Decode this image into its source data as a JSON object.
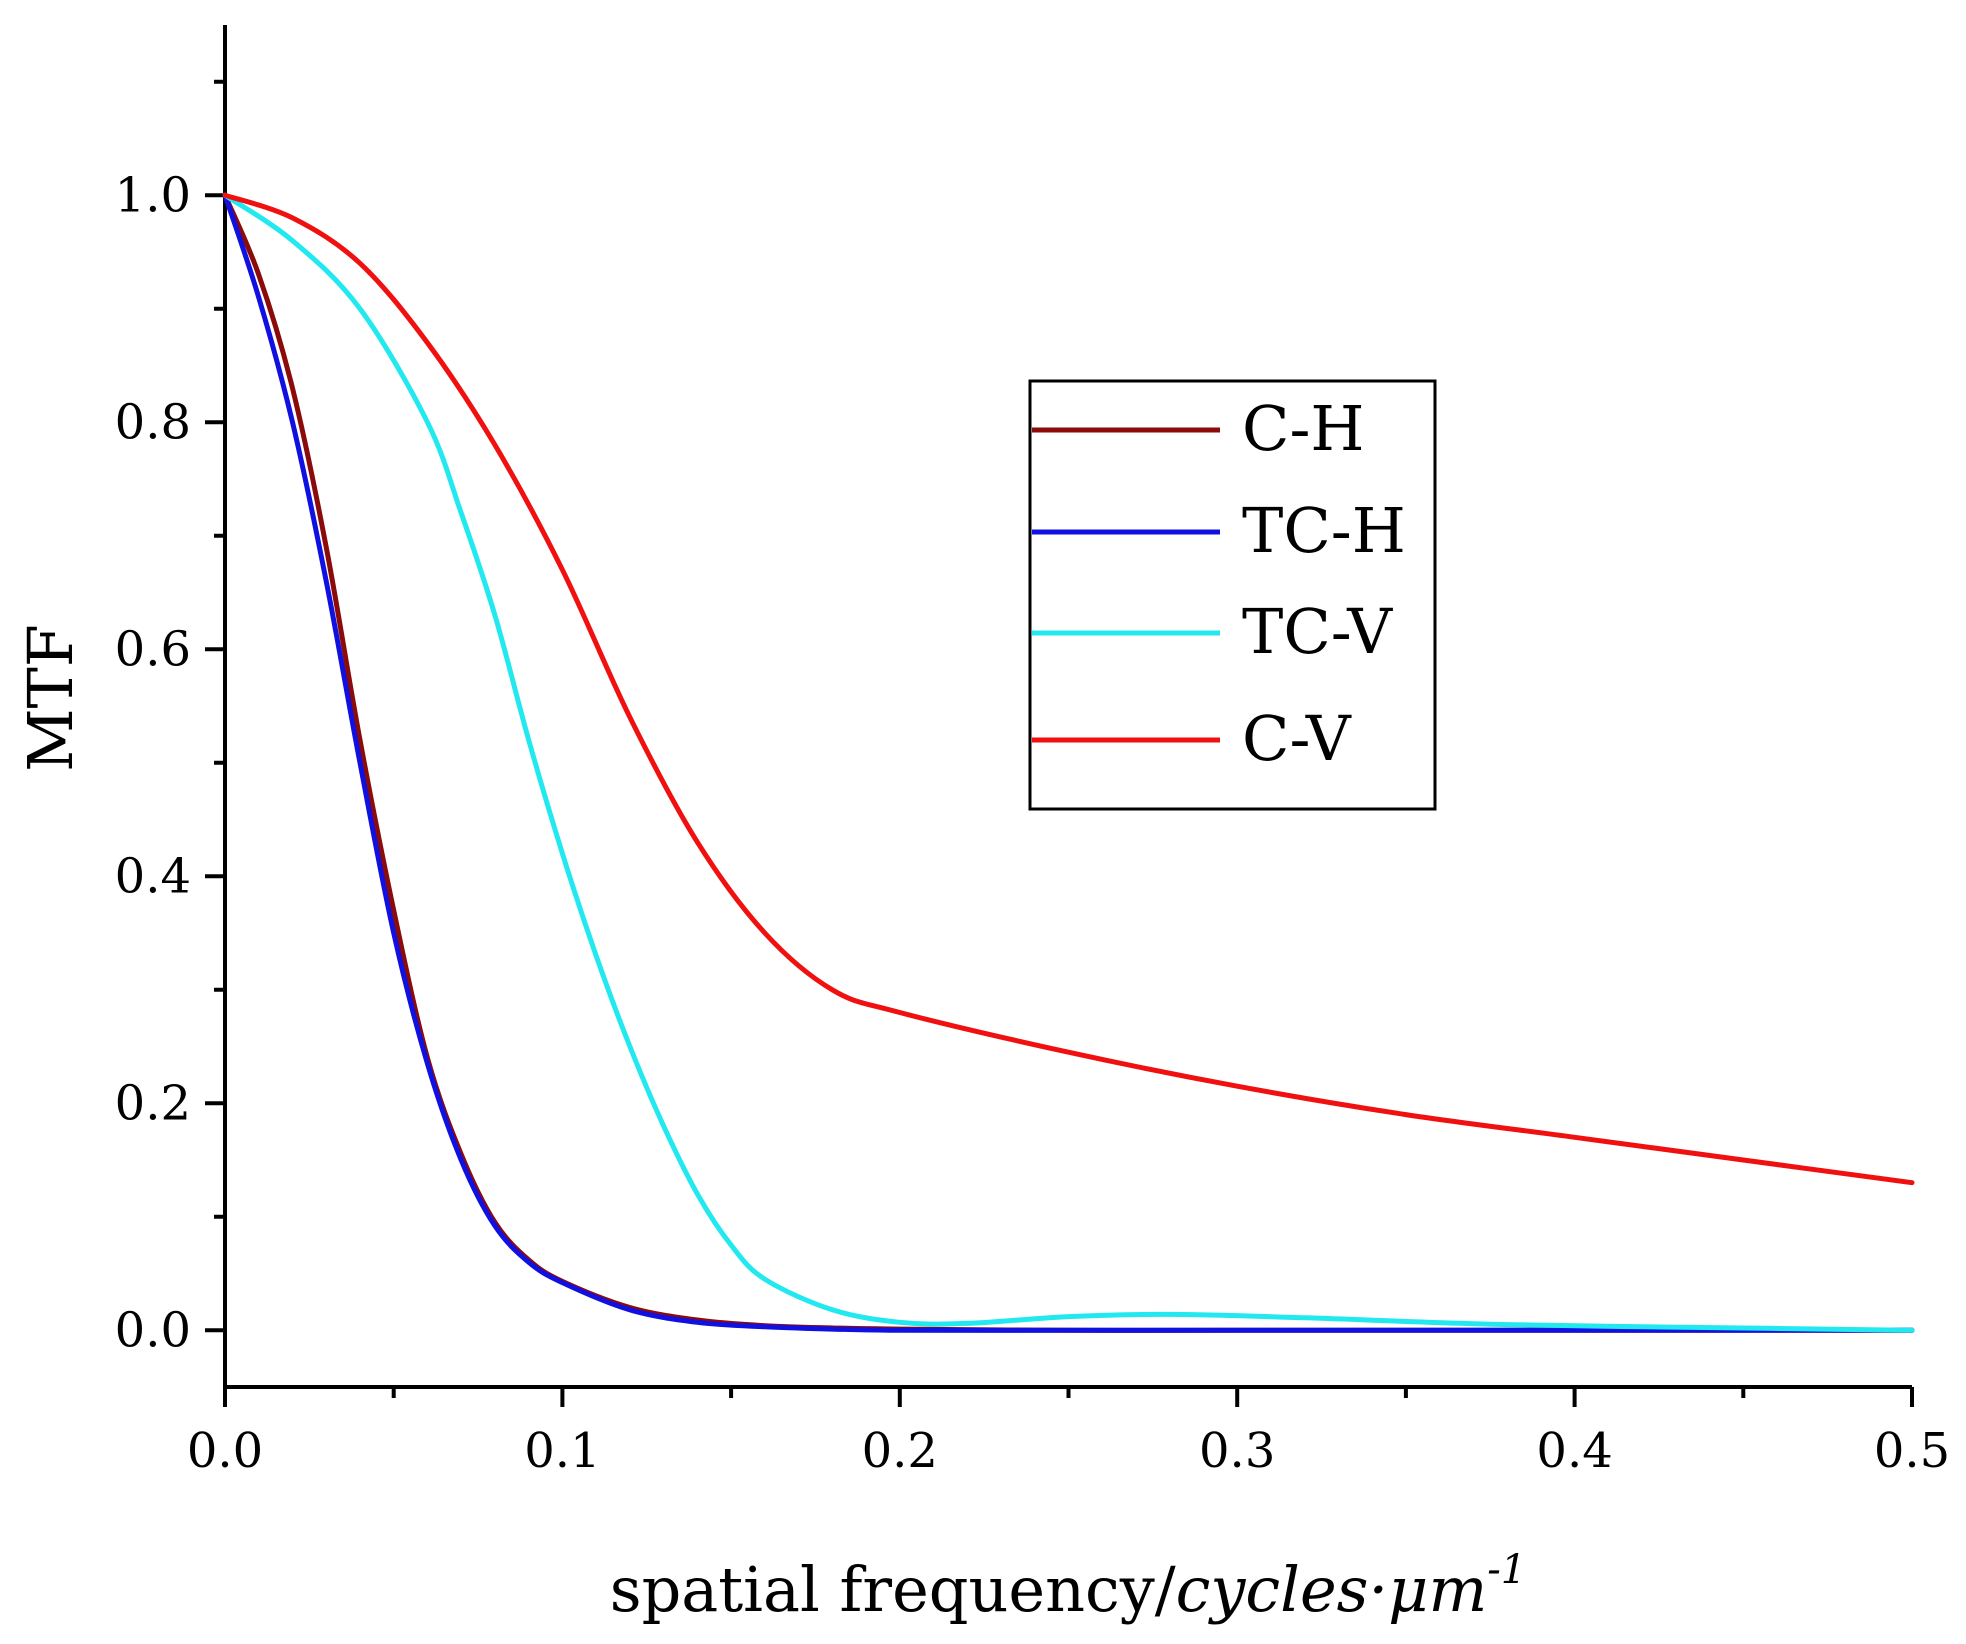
{
  "chart_data": {
    "type": "line",
    "xlabel": "spatial frequency/",
    "xlabel_unit": "cycles·μm",
    "xlabel_unit_exponent": "-1",
    "ylabel": "MTF",
    "xlim": [
      0.0,
      0.5
    ],
    "ylim": [
      -0.05,
      1.15
    ],
    "xticks": [
      "0.0",
      "0.1",
      "0.2",
      "0.3",
      "0.4",
      "0.5"
    ],
    "yticks": [
      "0.0",
      "0.2",
      "0.4",
      "0.6",
      "0.8",
      "1.0"
    ],
    "legend_position": "center-right",
    "series": [
      {
        "name": "C-H",
        "color": "#8B0A0A",
        "x": [
          0,
          0.01,
          0.02,
          0.03,
          0.04,
          0.05,
          0.06,
          0.07,
          0.08,
          0.09,
          0.1,
          0.12,
          0.14,
          0.16,
          0.18,
          0.2,
          0.25,
          0.3,
          0.4,
          0.5
        ],
        "y": [
          1.0,
          0.93,
          0.83,
          0.69,
          0.52,
          0.37,
          0.24,
          0.155,
          0.095,
          0.062,
          0.043,
          0.02,
          0.009,
          0.004,
          0.002,
          0.001,
          0.0,
          0.0,
          0.0,
          0.0
        ]
      },
      {
        "name": "TC-H",
        "color": "#1010E0",
        "x": [
          0,
          0.01,
          0.02,
          0.03,
          0.04,
          0.05,
          0.06,
          0.07,
          0.08,
          0.09,
          0.1,
          0.12,
          0.14,
          0.16,
          0.18,
          0.2,
          0.25,
          0.3,
          0.4,
          0.5
        ],
        "y": [
          1.0,
          0.91,
          0.8,
          0.66,
          0.5,
          0.35,
          0.235,
          0.15,
          0.092,
          0.06,
          0.042,
          0.018,
          0.007,
          0.003,
          0.001,
          0.0,
          0.0,
          0.0,
          0.0,
          0.0
        ]
      },
      {
        "name": "TC-V",
        "color": "#22E8F0",
        "x": [
          0,
          0.02,
          0.04,
          0.06,
          0.07,
          0.08,
          0.09,
          0.1,
          0.11,
          0.12,
          0.13,
          0.14,
          0.15,
          0.16,
          0.18,
          0.2,
          0.22,
          0.25,
          0.28,
          0.32,
          0.38,
          0.45,
          0.5
        ],
        "y": [
          1.0,
          0.96,
          0.9,
          0.8,
          0.72,
          0.63,
          0.52,
          0.42,
          0.33,
          0.25,
          0.18,
          0.12,
          0.075,
          0.045,
          0.018,
          0.007,
          0.006,
          0.012,
          0.014,
          0.011,
          0.005,
          0.002,
          0.0
        ]
      },
      {
        "name": "C-V",
        "color": "#F01010",
        "x": [
          0,
          0.02,
          0.04,
          0.06,
          0.08,
          0.1,
          0.12,
          0.14,
          0.16,
          0.18,
          0.2,
          0.25,
          0.3,
          0.35,
          0.4,
          0.45,
          0.5
        ],
        "y": [
          1.0,
          0.98,
          0.94,
          0.87,
          0.78,
          0.67,
          0.54,
          0.43,
          0.35,
          0.3,
          0.28,
          0.245,
          0.215,
          0.19,
          0.17,
          0.15,
          0.13
        ]
      }
    ]
  }
}
